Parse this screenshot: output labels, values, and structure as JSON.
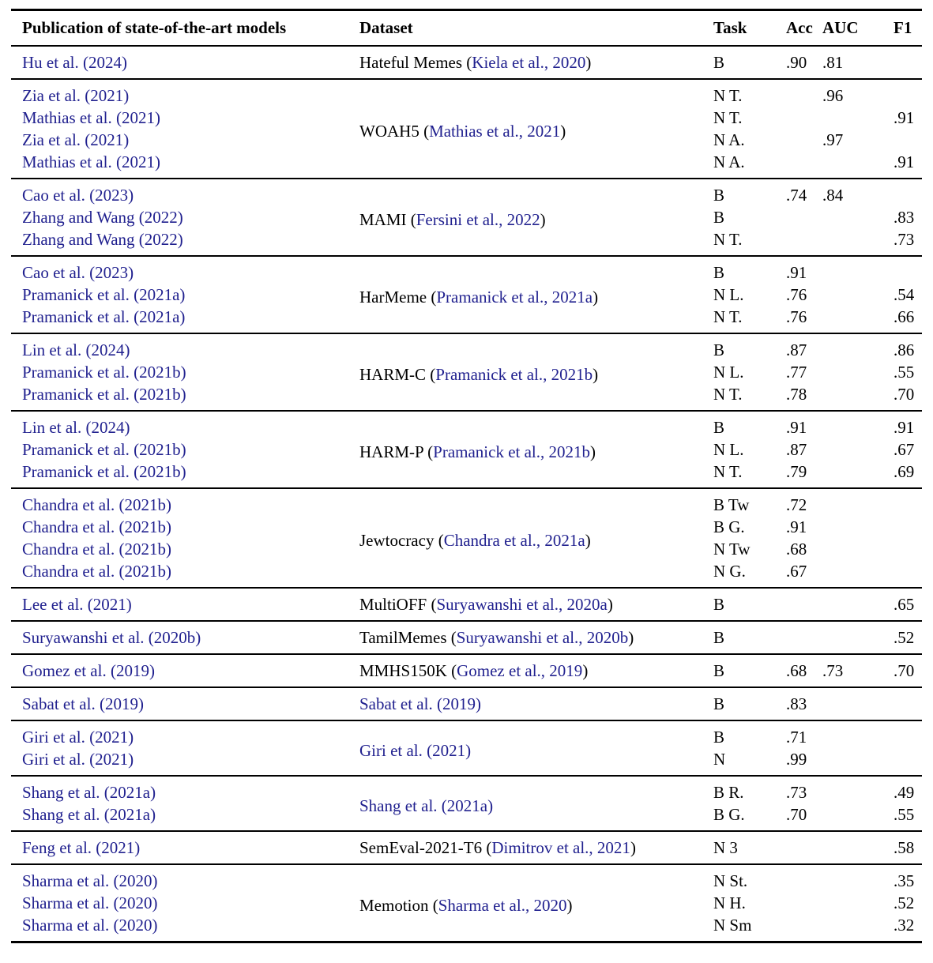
{
  "page": {
    "background": "#ffffff",
    "text_color": "#000000",
    "link_color": "#21218F",
    "rule_color": "#000000"
  },
  "table": {
    "headers": {
      "publication": "Publication of state-of-the-art models",
      "dataset": "Dataset",
      "task": "Task",
      "acc": "Acc",
      "auc": "AUC",
      "f1": "F1"
    },
    "groups": [
      {
        "dataset": {
          "pre": "Hateful Memes (",
          "link": "Kiela et al., 2020",
          "post": ")"
        },
        "rows": [
          {
            "publication": "Hu et al. (2024)",
            "task": "B",
            "acc": ".90",
            "auc": ".81",
            "f1": ""
          }
        ]
      },
      {
        "dataset": {
          "pre": "WOAH5 (",
          "link": "Mathias et al., 2021",
          "post": ")"
        },
        "rows": [
          {
            "publication": "Zia et al. (2021)",
            "task": "N T.",
            "acc": "",
            "auc": ".96",
            "f1": ""
          },
          {
            "publication": "Mathias et al. (2021)",
            "task": "N T.",
            "acc": "",
            "auc": "",
            "f1": ".91"
          },
          {
            "publication": "Zia et al. (2021)",
            "task": "N A.",
            "acc": "",
            "auc": ".97",
            "f1": ""
          },
          {
            "publication": "Mathias et al. (2021)",
            "task": "N A.",
            "acc": "",
            "auc": "",
            "f1": ".91"
          }
        ]
      },
      {
        "dataset": {
          "pre": "MAMI (",
          "link": "Fersini et al., 2022",
          "post": ")"
        },
        "rows": [
          {
            "publication": "Cao et al. (2023)",
            "task": "B",
            "acc": ".74",
            "auc": ".84",
            "f1": ""
          },
          {
            "publication": "Zhang and Wang (2022)",
            "task": "B",
            "acc": "",
            "auc": "",
            "f1": ".83"
          },
          {
            "publication": "Zhang and Wang (2022)",
            "task": "N T.",
            "acc": "",
            "auc": "",
            "f1": ".73"
          }
        ]
      },
      {
        "dataset": {
          "pre": "HarMeme (",
          "link": "Pramanick et al., 2021a",
          "post": ")"
        },
        "rows": [
          {
            "publication": "Cao et al. (2023)",
            "task": "B",
            "acc": ".91",
            "auc": "",
            "f1": ""
          },
          {
            "publication": "Pramanick et al. (2021a)",
            "task": "N L.",
            "acc": ".76",
            "auc": "",
            "f1": ".54"
          },
          {
            "publication": "Pramanick et al. (2021a)",
            "task": "N T.",
            "acc": ".76",
            "auc": "",
            "f1": ".66"
          }
        ]
      },
      {
        "dataset": {
          "pre": "HARM-C (",
          "link": "Pramanick et al., 2021b",
          "post": ")"
        },
        "rows": [
          {
            "publication": "Lin et al. (2024)",
            "task": "B",
            "acc": ".87",
            "auc": "",
            "f1": ".86"
          },
          {
            "publication": "Pramanick et al. (2021b)",
            "task": "N L.",
            "acc": ".77",
            "auc": "",
            "f1": ".55"
          },
          {
            "publication": "Pramanick et al. (2021b)",
            "task": "N T.",
            "acc": ".78",
            "auc": "",
            "f1": ".70"
          }
        ]
      },
      {
        "dataset": {
          "pre": "HARM-P (",
          "link": "Pramanick et al., 2021b",
          "post": ")"
        },
        "rows": [
          {
            "publication": "Lin et al. (2024)",
            "task": "B",
            "acc": ".91",
            "auc": "",
            "f1": ".91"
          },
          {
            "publication": "Pramanick et al. (2021b)",
            "task": "N L.",
            "acc": ".87",
            "auc": "",
            "f1": ".67"
          },
          {
            "publication": "Pramanick et al. (2021b)",
            "task": "N T.",
            "acc": ".79",
            "auc": "",
            "f1": ".69"
          }
        ]
      },
      {
        "dataset": {
          "pre": "Jewtocracy (",
          "link": "Chandra et al., 2021a",
          "post": ")"
        },
        "rows": [
          {
            "publication": "Chandra et al. (2021b)",
            "task": "B Tw",
            "acc": ".72",
            "auc": "",
            "f1": ""
          },
          {
            "publication": "Chandra et al. (2021b)",
            "task": "B G.",
            "acc": ".91",
            "auc": "",
            "f1": ""
          },
          {
            "publication": "Chandra et al. (2021b)",
            "task": "N Tw",
            "acc": ".68",
            "auc": "",
            "f1": ""
          },
          {
            "publication": "Chandra et al. (2021b)",
            "task": "N G.",
            "acc": ".67",
            "auc": "",
            "f1": ""
          }
        ]
      },
      {
        "dataset": {
          "pre": "MultiOFF (",
          "link": "Suryawanshi et al., 2020a",
          "post": ")"
        },
        "rows": [
          {
            "publication": "Lee et al. (2021)",
            "task": "B",
            "acc": "",
            "auc": "",
            "f1": ".65"
          }
        ]
      },
      {
        "dataset": {
          "pre": "TamilMemes (",
          "link": "Suryawanshi et al., 2020b",
          "post": ")"
        },
        "rows": [
          {
            "publication": "Suryawanshi et al. (2020b)",
            "task": "B",
            "acc": "",
            "auc": "",
            "f1": ".52"
          }
        ]
      },
      {
        "dataset": {
          "pre": "MMHS150K (",
          "link": "Gomez et al., 2019",
          "post": ")"
        },
        "rows": [
          {
            "publication": "Gomez et al. (2019)",
            "task": "B",
            "acc": ".68",
            "auc": ".73",
            "f1": ".70"
          }
        ]
      },
      {
        "dataset": {
          "pre": "",
          "link": "Sabat et al. (2019)",
          "post": ""
        },
        "rows": [
          {
            "publication": "Sabat et al. (2019)",
            "task": "B",
            "acc": ".83",
            "auc": "",
            "f1": ""
          }
        ]
      },
      {
        "dataset": {
          "pre": "",
          "link": "Giri et al. (2021)",
          "post": ""
        },
        "rows": [
          {
            "publication": "Giri et al. (2021)",
            "task": "B",
            "acc": ".71",
            "auc": "",
            "f1": ""
          },
          {
            "publication": "Giri et al. (2021)",
            "task": "N",
            "acc": ".99",
            "auc": "",
            "f1": ""
          }
        ]
      },
      {
        "dataset": {
          "pre": "",
          "link": "Shang et al. (2021a)",
          "post": ""
        },
        "rows": [
          {
            "publication": "Shang et al. (2021a)",
            "task": "B R.",
            "acc": ".73",
            "auc": "",
            "f1": ".49"
          },
          {
            "publication": "Shang et al. (2021a)",
            "task": "B G.",
            "acc": ".70",
            "auc": "",
            "f1": ".55"
          }
        ]
      },
      {
        "dataset": {
          "pre": "SemEval-2021-T6 (",
          "link": "Dimitrov et al., 2021",
          "post": ")"
        },
        "rows": [
          {
            "publication": "Feng et al. (2021)",
            "task": "N 3",
            "acc": "",
            "auc": "",
            "f1": ".58"
          }
        ]
      },
      {
        "dataset": {
          "pre": "Memotion (",
          "link": "Sharma et al., 2020",
          "post": ")"
        },
        "rows": [
          {
            "publication": "Sharma et al. (2020)",
            "task": "N St.",
            "acc": "",
            "auc": "",
            "f1": ".35"
          },
          {
            "publication": "Sharma et al. (2020)",
            "task": "N H.",
            "acc": "",
            "auc": "",
            "f1": ".52"
          },
          {
            "publication": "Sharma et al. (2020)",
            "task": "N Sm",
            "acc": "",
            "auc": "",
            "f1": ".32"
          }
        ]
      }
    ]
  }
}
